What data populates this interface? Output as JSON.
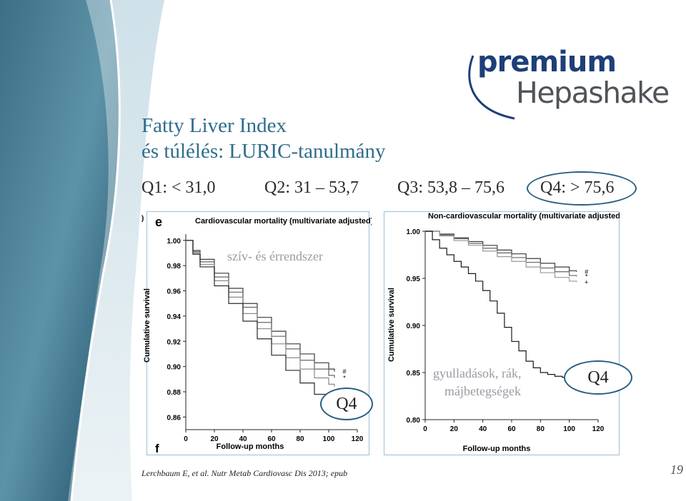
{
  "logo": {
    "line1": "premium",
    "line2": "Hepashake"
  },
  "title": {
    "line1": "Fatty Liver Index",
    "line2": "és túlélés: LURIC-tanulmány"
  },
  "quartiles": [
    {
      "label": "Q1: < 31,0"
    },
    {
      "label": "Q2: 31 – 53,7"
    },
    {
      "label": "Q3: 53,8 – 75,6"
    },
    {
      "label": "Q4: > 75,6"
    }
  ],
  "colors": {
    "title": "#2e6d8c",
    "accent": "#2a5f83",
    "logo_blue": "#1e3f78",
    "logo_grey": "#4f5459"
  },
  "chart_data": [
    {
      "type": "line",
      "panel_letter": "e",
      "fragment_top": ")",
      "fragment_bottom": "f",
      "title": "Cardiovascular mortality (multivariate adjusted)",
      "ylabel": "Cumulative survival",
      "xlabel": "Follow-up months",
      "xlim": [
        0,
        120
      ],
      "ylim": [
        0.85,
        1.005
      ],
      "xticks": [
        "0",
        "20",
        "40",
        "60",
        "80",
        "100",
        "120"
      ],
      "yticks": [
        "1.00",
        "0.98",
        "0.96",
        "0.94",
        "0.92",
        "0.90",
        "0.88",
        "0.86"
      ],
      "annotation": "szív- és érrendszer",
      "callout": "Q4",
      "series": [
        {
          "marker": "#",
          "x": [
            0,
            5,
            10,
            20,
            30,
            40,
            50,
            60,
            70,
            80,
            90,
            100,
            104
          ],
          "y": [
            1.0,
            0.992,
            0.985,
            0.974,
            0.962,
            0.95,
            0.939,
            0.928,
            0.918,
            0.91,
            0.903,
            0.898,
            0.896
          ]
        },
        {
          "marker": "*",
          "x": [
            0,
            5,
            10,
            20,
            30,
            40,
            50,
            60,
            70,
            80,
            90,
            100,
            104
          ],
          "y": [
            1.0,
            0.991,
            0.983,
            0.971,
            0.959,
            0.947,
            0.935,
            0.924,
            0.914,
            0.905,
            0.898,
            0.893,
            0.891
          ]
        },
        {
          "marker": "",
          "x": [
            0,
            5,
            10,
            20,
            30,
            40,
            50,
            60,
            70,
            80,
            90,
            100,
            104
          ],
          "y": [
            1.0,
            0.99,
            0.981,
            0.968,
            0.955,
            0.942,
            0.93,
            0.918,
            0.907,
            0.898,
            0.891,
            0.886,
            0.884
          ]
        },
        {
          "marker": "",
          "x": [
            0,
            5,
            10,
            20,
            30,
            40,
            50,
            60,
            70,
            80,
            90,
            100,
            104
          ],
          "y": [
            1.0,
            0.989,
            0.979,
            0.964,
            0.95,
            0.936,
            0.922,
            0.909,
            0.897,
            0.887,
            0.878,
            0.872,
            0.87
          ]
        }
      ]
    },
    {
      "type": "line",
      "title": "Non-cardiovascular mortality (multivariate adjusted)",
      "ylabel": "Cumulative survival",
      "xlabel": "Follow-up months",
      "xlim": [
        0,
        120
      ],
      "ylim": [
        0.8,
        1.0
      ],
      "xticks": [
        "0",
        "20",
        "40",
        "60",
        "80",
        "100",
        "120"
      ],
      "yticks": [
        "1.00",
        "0.95",
        "0.90",
        "0.85",
        "0.80"
      ],
      "annotation": [
        "gyulladások, rák,",
        "májbetegségek"
      ],
      "callout": "Q4",
      "series": [
        {
          "marker": "#",
          "x": [
            0,
            10,
            20,
            30,
            40,
            50,
            60,
            70,
            80,
            90,
            100,
            105
          ],
          "y": [
            1.0,
            0.997,
            0.993,
            0.989,
            0.985,
            0.98,
            0.976,
            0.971,
            0.966,
            0.962,
            0.958,
            0.957
          ]
        },
        {
          "marker": "*",
          "x": [
            0,
            10,
            20,
            30,
            40,
            50,
            60,
            70,
            80,
            90,
            100,
            105
          ],
          "y": [
            1.0,
            0.996,
            0.992,
            0.987,
            0.982,
            0.977,
            0.972,
            0.967,
            0.961,
            0.957,
            0.953,
            0.952
          ]
        },
        {
          "marker": "+",
          "x": [
            0,
            10,
            20,
            30,
            40,
            50,
            60,
            70,
            80,
            90,
            100,
            105
          ],
          "y": [
            1.0,
            0.995,
            0.99,
            0.985,
            0.979,
            0.973,
            0.968,
            0.962,
            0.956,
            0.951,
            0.947,
            0.946
          ]
        },
        {
          "marker": "",
          "x": [
            0,
            5,
            10,
            15,
            20,
            25,
            30,
            35,
            40,
            45,
            50,
            55,
            60,
            65,
            70,
            75,
            80,
            85,
            90,
            95,
            100,
            105
          ],
          "y": [
            1.0,
            0.991,
            0.982,
            0.975,
            0.968,
            0.962,
            0.955,
            0.947,
            0.937,
            0.926,
            0.913,
            0.898,
            0.883,
            0.873,
            0.862,
            0.855,
            0.85,
            0.848,
            0.846,
            0.845,
            0.844,
            0.843
          ]
        }
      ]
    }
  ],
  "citation": "Lerchbaum E, et al. Nutr Metab Cardiovasc Dis 2013; epub",
  "page_number": "19"
}
